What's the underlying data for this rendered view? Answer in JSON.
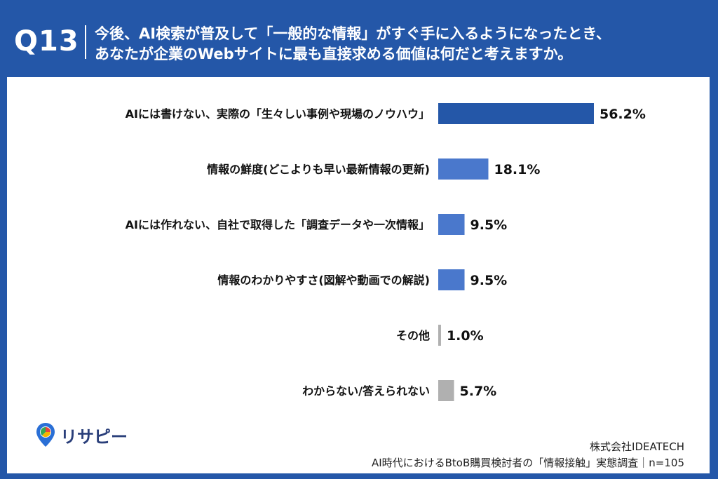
{
  "header": {
    "question_number": "Q13",
    "question_line1": "今後、AI検索が普及して「一般的な情報」がすぐ手に入るようになったとき、",
    "question_line2": "あなたが企業のWebサイトに最も直接求める価値は何だと考えますか。"
  },
  "colors": {
    "header_bg": "#2457a8",
    "bar_primary": "#2457a8",
    "bar_secondary": "#4a78cc",
    "bar_other": "#b0b0b0"
  },
  "chart_data": {
    "type": "bar",
    "orientation": "horizontal",
    "categories": [
      "AIには書けない、実際の「生々しい事例や現場のノウハウ」",
      "情報の鮮度(どこよりも早い最新情報の更新)",
      "AIには作れない、自社で取得した「調査データや一次情報」",
      "情報のわかりやすさ(図解や動画での解説)",
      "その他",
      "わからない/答えられない"
    ],
    "values": [
      56.2,
      18.1,
      9.5,
      9.5,
      1.0,
      5.7
    ],
    "value_labels": [
      "56.2%",
      "18.1%",
      "9.5%",
      "9.5%",
      "1.0%",
      "5.7%"
    ],
    "bar_colors": [
      "#2457a8",
      "#4a78cc",
      "#4a78cc",
      "#4a78cc",
      "#b0b0b0",
      "#b0b0b0"
    ],
    "xlim": [
      0,
      100
    ],
    "grid": false,
    "title": "",
    "xlabel": "",
    "ylabel": ""
  },
  "footer": {
    "logo_text": "リサピー",
    "company": "株式会社IDEATECH",
    "survey": "AI時代におけるBtoB購買検討者の「情報接触」実態調査｜n=105"
  }
}
